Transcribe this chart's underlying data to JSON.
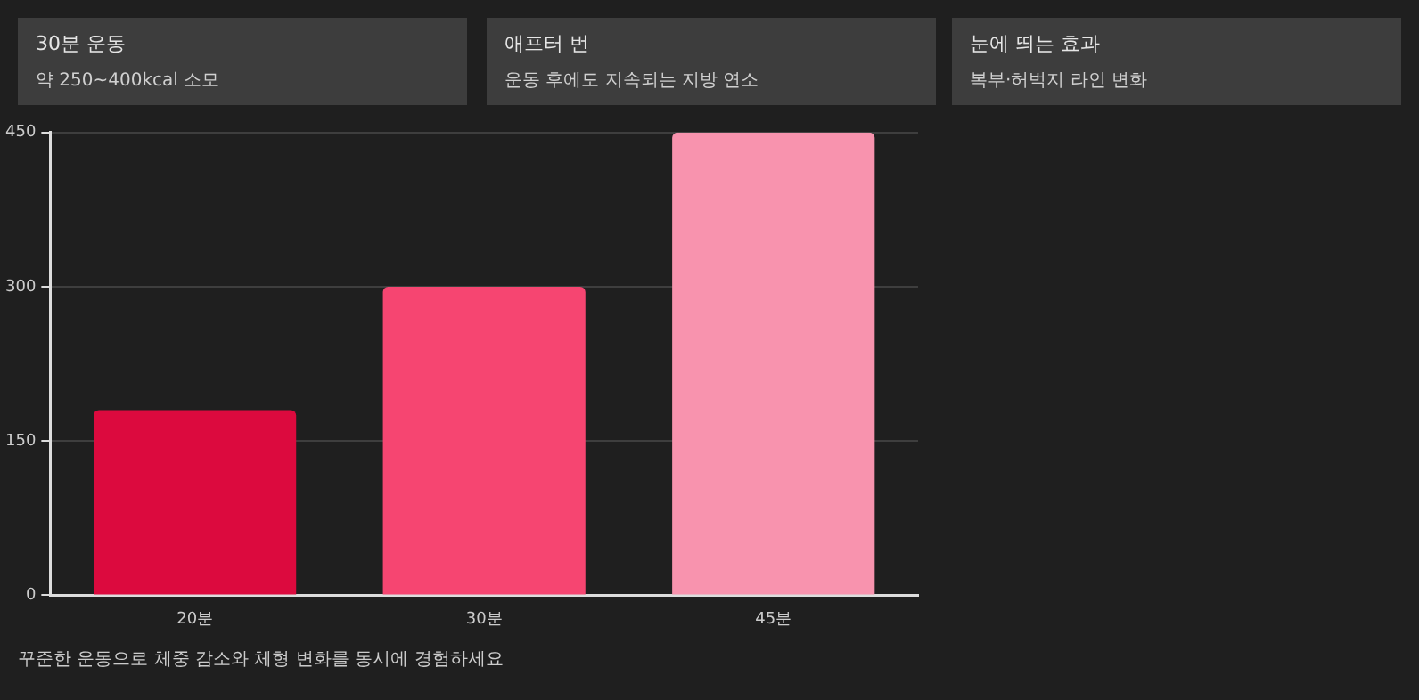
{
  "chart_data": [
    {
      "type": "other",
      "title": "30분 운동",
      "subtitle": "약 250~400kcal 소모"
    },
    {
      "type": "other",
      "title": "애프터 번",
      "subtitle": "운동 후에도 지속되는 지방 연소"
    },
    {
      "type": "other",
      "title": "눈에 띄는 효과",
      "subtitle": "복부·허벅지 라인 변화"
    },
    {
      "type": "bar",
      "categories": [
        "20분",
        "30분",
        "45분"
      ],
      "values": [
        180,
        300,
        450
      ],
      "colors": [
        "#dc0a3e",
        "#f64571",
        "#f893ae"
      ],
      "ylim": [
        0,
        450
      ],
      "yticks": [
        0,
        150,
        300,
        450
      ],
      "grid": "y",
      "annotations": [
        "꾸준한 운동으로 체중 감소와 체형 변화를 동시에 경험하세요"
      ]
    }
  ]
}
